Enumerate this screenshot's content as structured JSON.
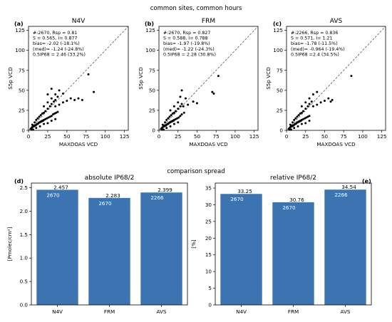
{
  "figure": {
    "top_title": "common sites, common hours",
    "mid_title": "comparison spread"
  },
  "colors": {
    "bar": "#3b74b0",
    "point": "#000000",
    "diag": "#555555",
    "axis": "#000000"
  },
  "chart_data": [
    {
      "type": "scatter",
      "panel": "(a)",
      "title": "N4V",
      "xlabel": "MAXDOAS VCD",
      "ylabel": "S5p VCD",
      "xlim": [
        0,
        130
      ],
      "ylim": [
        0,
        130
      ],
      "ticks": [
        0,
        25,
        50,
        75,
        100,
        125
      ],
      "diagonal": true,
      "stats": [
        "#:2670, Rsp = 0.81",
        "S = 0.565, I= 0.877",
        "bias= -2.02 (-18.1%)",
        "(med)= -1.24 (-24.8%)",
        "0.5IP68 = 2.46 (33.2%)"
      ],
      "points": [
        [
          3,
          2
        ],
        [
          4,
          3
        ],
        [
          5,
          4
        ],
        [
          6,
          5
        ],
        [
          7,
          5
        ],
        [
          8,
          6
        ],
        [
          9,
          6
        ],
        [
          10,
          7
        ],
        [
          11,
          8
        ],
        [
          12,
          8
        ],
        [
          13,
          9
        ],
        [
          14,
          10
        ],
        [
          15,
          10
        ],
        [
          16,
          11
        ],
        [
          17,
          11
        ],
        [
          18,
          12
        ],
        [
          19,
          12
        ],
        [
          20,
          13
        ],
        [
          22,
          14
        ],
        [
          24,
          15
        ],
        [
          26,
          16
        ],
        [
          28,
          17
        ],
        [
          30,
          18
        ],
        [
          32,
          20
        ],
        [
          34,
          21
        ],
        [
          36,
          22
        ],
        [
          38,
          23
        ],
        [
          5,
          7
        ],
        [
          8,
          10
        ],
        [
          10,
          13
        ],
        [
          12,
          15
        ],
        [
          14,
          17
        ],
        [
          16,
          19
        ],
        [
          18,
          21
        ],
        [
          20,
          22
        ],
        [
          22,
          24
        ],
        [
          25,
          27
        ],
        [
          28,
          30
        ],
        [
          30,
          33
        ],
        [
          33,
          36
        ],
        [
          20,
          30
        ],
        [
          25,
          35
        ],
        [
          30,
          40
        ],
        [
          35,
          45
        ],
        [
          40,
          50
        ],
        [
          35,
          30
        ],
        [
          40,
          32
        ],
        [
          45,
          35
        ],
        [
          50,
          37
        ],
        [
          55,
          40
        ],
        [
          25,
          45
        ],
        [
          30,
          52
        ],
        [
          35,
          38
        ],
        [
          38,
          42
        ],
        [
          45,
          46
        ],
        [
          60,
          38
        ],
        [
          65,
          40
        ],
        [
          70,
          38
        ],
        [
          78,
          70
        ],
        [
          85,
          48
        ],
        [
          15,
          5
        ],
        [
          20,
          8
        ],
        [
          25,
          9
        ],
        [
          30,
          12
        ],
        [
          35,
          14
        ],
        [
          10,
          3
        ],
        [
          6,
          1
        ],
        [
          4,
          1
        ]
      ]
    },
    {
      "type": "scatter",
      "panel": "(b)",
      "title": "FRM",
      "xlabel": "MAXDOAS VCD",
      "ylabel": "S5p VCD",
      "xlim": [
        0,
        130
      ],
      "ylim": [
        0,
        130
      ],
      "ticks": [
        0,
        25,
        50,
        75,
        100,
        125
      ],
      "diagonal": true,
      "stats": [
        "#:2670, Rsp = 0.827",
        "S = 0.588, I= 0.788",
        "bias= -1.97 (-19.8%)",
        "(med)= -1.22 (-24.3%)",
        "0.5IP68 = 2.28 (30.8%)"
      ],
      "points": [
        [
          3,
          2
        ],
        [
          4,
          3
        ],
        [
          5,
          4
        ],
        [
          6,
          5
        ],
        [
          7,
          5
        ],
        [
          8,
          6
        ],
        [
          9,
          6
        ],
        [
          10,
          7
        ],
        [
          11,
          8
        ],
        [
          12,
          8
        ],
        [
          13,
          9
        ],
        [
          14,
          10
        ],
        [
          15,
          10
        ],
        [
          16,
          11
        ],
        [
          17,
          11
        ],
        [
          18,
          12
        ],
        [
          19,
          12
        ],
        [
          20,
          13
        ],
        [
          22,
          14
        ],
        [
          24,
          15
        ],
        [
          26,
          16
        ],
        [
          5,
          7
        ],
        [
          8,
          10
        ],
        [
          10,
          13
        ],
        [
          12,
          15
        ],
        [
          14,
          17
        ],
        [
          16,
          19
        ],
        [
          18,
          21
        ],
        [
          20,
          22
        ],
        [
          22,
          24
        ],
        [
          25,
          27
        ],
        [
          28,
          30
        ],
        [
          30,
          33
        ],
        [
          15,
          25
        ],
        [
          20,
          30
        ],
        [
          25,
          35
        ],
        [
          28,
          42
        ],
        [
          30,
          50
        ],
        [
          35,
          40
        ],
        [
          32,
          30
        ],
        [
          38,
          32
        ],
        [
          45,
          36
        ],
        [
          50,
          34
        ],
        [
          70,
          48
        ],
        [
          72,
          46
        ],
        [
          78,
          68
        ],
        [
          15,
          5
        ],
        [
          20,
          8
        ],
        [
          25,
          10
        ],
        [
          10,
          3
        ],
        [
          6,
          1
        ],
        [
          4,
          1
        ],
        [
          28,
          18
        ],
        [
          30,
          20
        ],
        [
          33,
          22
        ]
      ]
    },
    {
      "type": "scatter",
      "panel": "(c)",
      "title": "AVS",
      "xlabel": "MAXDOAS VCD",
      "ylabel": "S5p VCD",
      "xlim": [
        0,
        130
      ],
      "ylim": [
        0,
        130
      ],
      "ticks": [
        0,
        25,
        50,
        75,
        100,
        125
      ],
      "diagonal": true,
      "stats": [
        "#:2266, Rsp = 0.836",
        "S = 0.571, I= 1.21",
        "bias= -1.78 (-11.5%)",
        "(med)= -0.964 (-19.4%)",
        "0.5IP68 =2.4 (34.5%)"
      ],
      "points": [
        [
          3,
          2
        ],
        [
          4,
          3
        ],
        [
          5,
          4
        ],
        [
          6,
          5
        ],
        [
          7,
          5
        ],
        [
          8,
          6
        ],
        [
          9,
          6
        ],
        [
          10,
          7
        ],
        [
          11,
          8
        ],
        [
          12,
          8
        ],
        [
          13,
          9
        ],
        [
          14,
          10
        ],
        [
          15,
          10
        ],
        [
          16,
          11
        ],
        [
          17,
          11
        ],
        [
          18,
          12
        ],
        [
          19,
          12
        ],
        [
          20,
          13
        ],
        [
          22,
          14
        ],
        [
          24,
          15
        ],
        [
          26,
          16
        ],
        [
          28,
          17
        ],
        [
          30,
          18
        ],
        [
          5,
          7
        ],
        [
          8,
          10
        ],
        [
          10,
          13
        ],
        [
          12,
          15
        ],
        [
          14,
          17
        ],
        [
          16,
          19
        ],
        [
          18,
          21
        ],
        [
          20,
          22
        ],
        [
          22,
          24
        ],
        [
          25,
          27
        ],
        [
          28,
          30
        ],
        [
          30,
          33
        ],
        [
          33,
          36
        ],
        [
          20,
          30
        ],
        [
          25,
          35
        ],
        [
          30,
          40
        ],
        [
          35,
          45
        ],
        [
          40,
          48
        ],
        [
          35,
          30
        ],
        [
          40,
          32
        ],
        [
          45,
          35
        ],
        [
          50,
          37
        ],
        [
          55,
          40
        ],
        [
          58,
          36
        ],
        [
          60,
          38
        ],
        [
          85,
          68
        ],
        [
          15,
          5
        ],
        [
          20,
          8
        ],
        [
          25,
          9
        ],
        [
          30,
          12
        ],
        [
          10,
          3
        ],
        [
          6,
          1
        ],
        [
          4,
          1
        ]
      ]
    },
    {
      "type": "bar",
      "panel": "(d)",
      "title": "absolute IP68/2",
      "ylabel": "[Pmolec/cm²]",
      "categories": [
        "N4V",
        "FRM",
        "AVS"
      ],
      "values": [
        2.457,
        2.283,
        2.399
      ],
      "value_labels": [
        "2.457",
        "2.283",
        "2.399"
      ],
      "counts": [
        "2670",
        "2670",
        "2266"
      ],
      "ylim": [
        0,
        2.6
      ],
      "yticks": [
        "0.0",
        "0.5",
        "1.0",
        "1.5",
        "2.0",
        "2.5"
      ]
    },
    {
      "type": "bar",
      "panel": "(e)",
      "title": "relative IP68/2",
      "ylabel": "[%]",
      "categories": [
        "N4V",
        "FRM",
        "AVS"
      ],
      "values": [
        33.25,
        30.76,
        34.54
      ],
      "value_labels": [
        "33.25",
        "30.76",
        "34.54"
      ],
      "counts": [
        "2670",
        "2670",
        "2266"
      ],
      "ylim": [
        0,
        36.5
      ],
      "yticks": [
        "0",
        "5",
        "10",
        "15",
        "20",
        "25",
        "30",
        "35"
      ]
    }
  ]
}
